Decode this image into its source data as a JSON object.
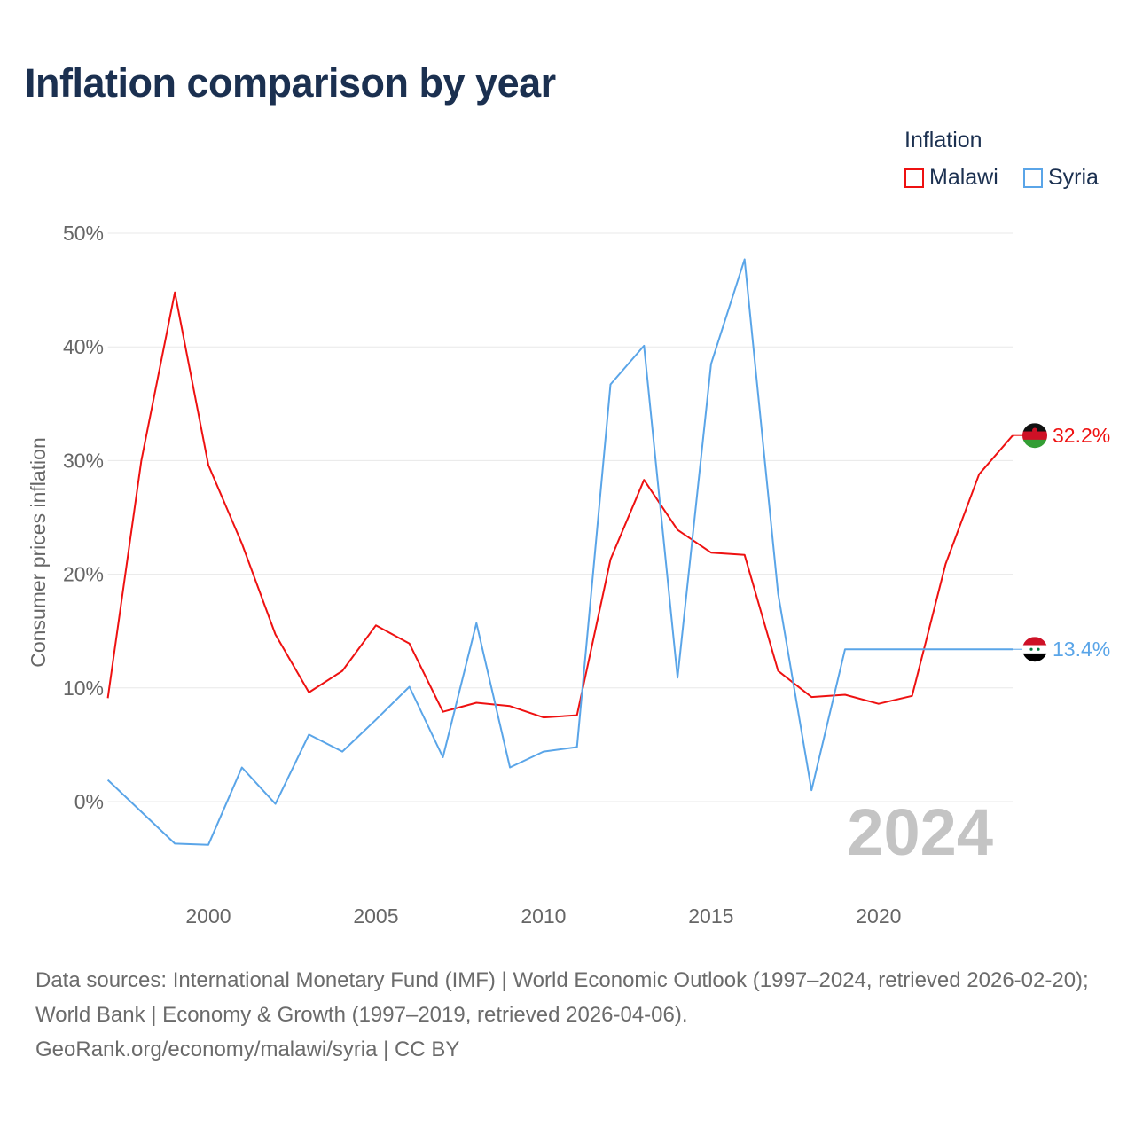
{
  "colors": {
    "malawi": "#ee1111",
    "syria": "#5aa5e8",
    "title": "#1b3050",
    "grid": "#e8e8e8",
    "year": "#c4c4c4"
  },
  "chart_data": {
    "type": "line",
    "title": "Inflation comparison by year",
    "legend_title": "Inflation",
    "legend_position": "top-right",
    "ylabel": "Consumer prices inflation",
    "xlabel": "",
    "ylim": [
      -8,
      50
    ],
    "xlim": [
      1997,
      2024
    ],
    "yticks": [
      0,
      10,
      20,
      30,
      40,
      50
    ],
    "ytick_labels": [
      "0%",
      "10%",
      "20%",
      "30%",
      "40%",
      "50%"
    ],
    "xticks": [
      2000,
      2005,
      2010,
      2015,
      2020
    ],
    "xtick_labels": [
      "2000",
      "2005",
      "2010",
      "2015",
      "2020"
    ],
    "grid": true,
    "current_year_label": "2024",
    "x": [
      1997,
      1998,
      1999,
      2000,
      2001,
      2002,
      2003,
      2004,
      2005,
      2006,
      2007,
      2008,
      2009,
      2010,
      2011,
      2012,
      2013,
      2014,
      2015,
      2016,
      2017,
      2018,
      2019,
      2020,
      2021,
      2022,
      2023,
      2024
    ],
    "series": [
      {
        "name": "Malawi",
        "end_label": "32.2%",
        "flag": "malawi-flag",
        "values": [
          9.1,
          30.0,
          44.8,
          29.6,
          22.7,
          14.7,
          9.6,
          11.5,
          15.5,
          13.9,
          7.9,
          8.7,
          8.4,
          7.4,
          7.6,
          21.3,
          28.3,
          23.9,
          21.9,
          21.7,
          11.5,
          9.2,
          9.4,
          8.6,
          9.3,
          20.9,
          28.8,
          32.2
        ]
      },
      {
        "name": "Syria",
        "end_label": "13.4%",
        "flag": "syria-flag",
        "values": [
          1.9,
          -0.9,
          -3.7,
          -3.8,
          3.0,
          -0.2,
          5.9,
          4.4,
          7.2,
          10.1,
          3.9,
          15.7,
          3.0,
          4.4,
          4.8,
          36.7,
          40.1,
          10.9,
          38.5,
          47.7,
          18.3,
          1.0,
          13.4,
          13.4,
          13.4,
          13.4,
          13.4,
          13.4
        ]
      }
    ]
  },
  "footer": {
    "sources": "Data sources: International Monetary Fund (IMF) | World Economic Outlook (1997–2024, retrieved 2026-02-20); World Bank | Economy & Growth (1997–2019, retrieved 2026-04-06).",
    "credit": "GeoRank.org/economy/malawi/syria | CC BY"
  }
}
